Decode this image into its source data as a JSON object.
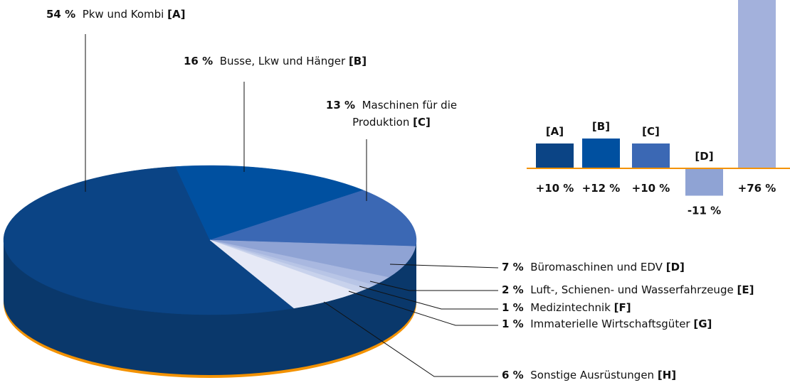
{
  "chart_data": [
    {
      "type": "pie",
      "categories": [
        "Pkw und Kombi",
        "Busse, Lkw und Hänger",
        "Maschinen für die Produktion",
        "Büromaschinen und EDV",
        "Luft-, Schienen- und Wasserfahrzeuge",
        "Medizintechnik",
        "Immaterielle Wirtschaftsgüter",
        "Sonstige Ausrüstungen"
      ],
      "keys": [
        "[A]",
        "[B]",
        "[C]",
        "[D]",
        "[E]",
        "[F]",
        "[G]",
        "[H]"
      ],
      "values": [
        54,
        16,
        13,
        7,
        2,
        1,
        1,
        6
      ],
      "value_labels": [
        "54 %",
        "16 %",
        "13 %",
        "7 %",
        "2 %",
        "1 %",
        "1 %",
        "6 %"
      ],
      "colors": [
        "#0b4485",
        "#0050a0",
        "#3b68b4",
        "#8fa3d4",
        "#a9b8e0",
        "#b8c5e6",
        "#c8d2ec",
        "#e6e9f6"
      ]
    },
    {
      "type": "bar",
      "categories": [
        "[A]",
        "[B]",
        "[C]",
        "[D]",
        null
      ],
      "values": [
        10,
        12,
        10,
        -11,
        76
      ],
      "value_labels": [
        "+10 %",
        "+12 %",
        "+10 %",
        "-11 %",
        "+76 %"
      ],
      "colors": [
        "#0b4485",
        "#0050a0",
        "#3b68b4",
        "#8fa3d4",
        "#a3b1dc"
      ]
    }
  ]
}
